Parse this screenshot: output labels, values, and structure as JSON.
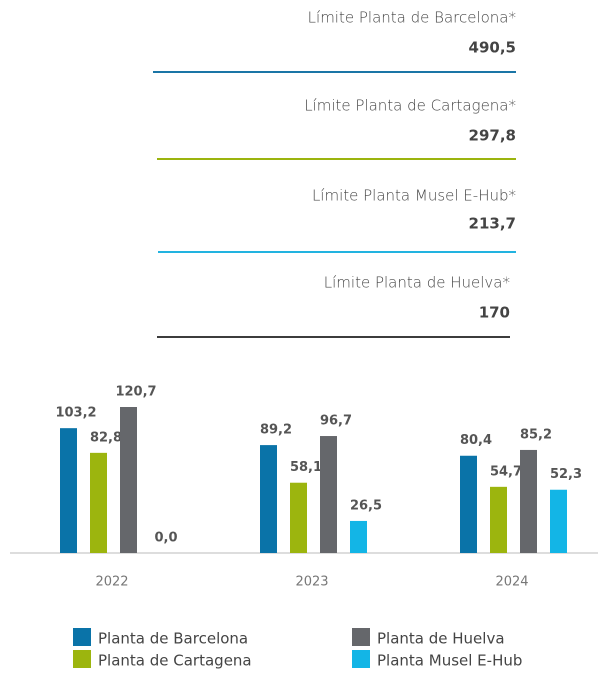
{
  "chart_data": {
    "type": "bar",
    "categories": [
      "2022",
      "2023",
      "2024"
    ],
    "series": [
      {
        "name": "Planta de Barcelona",
        "color": "#0a73a8",
        "values": [
          103.2,
          89.2,
          80.4
        ],
        "value_labels": [
          "103,2",
          "89,2",
          "80,4"
        ]
      },
      {
        "name": "Planta de Cartagena",
        "color": "#9cb50e",
        "values": [
          82.8,
          58.1,
          54.7
        ],
        "value_labels": [
          "82,8",
          "58,1",
          "54,7"
        ]
      },
      {
        "name": "Planta de Huelva",
        "color": "#65676b",
        "values": [
          120.7,
          96.7,
          85.2
        ],
        "value_labels": [
          "120,7",
          "96,7",
          "85,2"
        ]
      },
      {
        "name": "Planta Musel E-Hub",
        "color": "#13b5e6",
        "values": [
          0.0,
          26.5,
          52.3
        ],
        "value_labels": [
          "0,0",
          "26,5",
          "52,3"
        ]
      }
    ],
    "limits": [
      {
        "label": "Límite Planta de Barcelona*",
        "value": 490.5,
        "value_label": "490,5",
        "color": "#1a75a6"
      },
      {
        "label": "Límite Planta de Cartagena*",
        "value": 297.8,
        "value_label": "297,8",
        "color": "#9bb40e"
      },
      {
        "label": "Límite Planta Musel E-Hub*",
        "value": 213.7,
        "value_label": "213,7",
        "color": "#22b3e0"
      },
      {
        "label": "Límite Planta de Huelva*",
        "value": 170,
        "value_label": "170",
        "color": "#3c3c3c"
      }
    ]
  }
}
